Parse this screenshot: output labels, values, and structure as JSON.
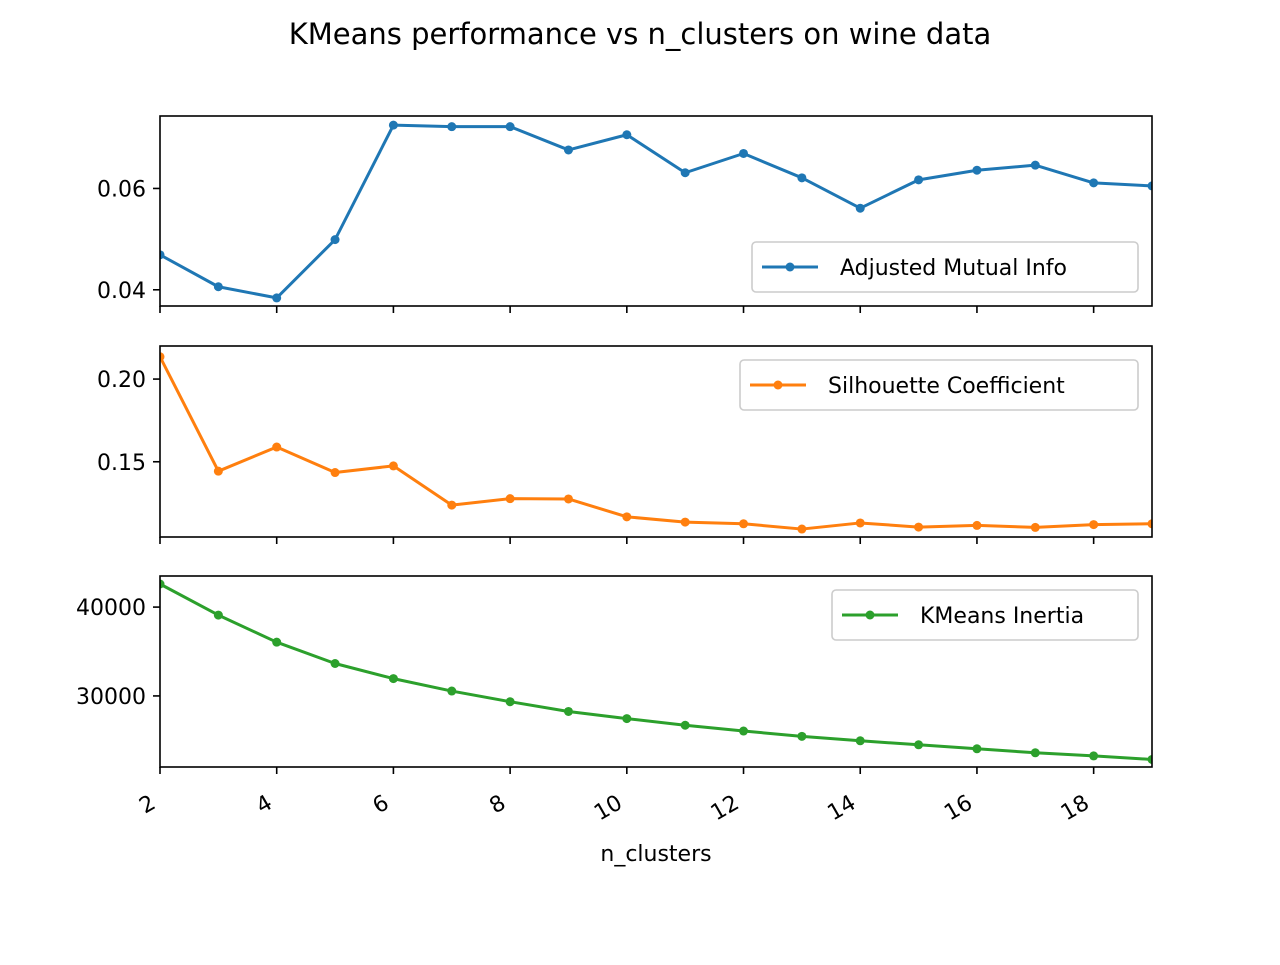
{
  "chart_data": {
    "type": "line",
    "title": "KMeans performance vs n_clusters on wine data",
    "xlabel": "n_clusters",
    "x": [
      2,
      3,
      4,
      5,
      6,
      7,
      8,
      9,
      10,
      11,
      12,
      13,
      14,
      15,
      16,
      17,
      18,
      19
    ],
    "xlim": [
      2,
      19
    ],
    "xticks": [
      2,
      4,
      6,
      8,
      10,
      12,
      14,
      16,
      18
    ],
    "xtick_labels": [
      "2",
      "4",
      "6",
      "8",
      "10",
      "12",
      "14",
      "16",
      "18"
    ],
    "grid": false,
    "panels": [
      {
        "legend_loc": "lower right",
        "ylim": [
          0.0368,
          0.0743
        ],
        "yticks": [
          0.04,
          0.06
        ],
        "ytick_labels": [
          "0.04",
          "0.06"
        ],
        "series": [
          {
            "name": "Adjusted Mutual Info",
            "color": "#1f77b4",
            "values": [
              0.0469,
              0.0406,
              0.0384,
              0.0499,
              0.0725,
              0.0722,
              0.0722,
              0.0676,
              0.0706,
              0.0631,
              0.0669,
              0.0621,
              0.0561,
              0.0617,
              0.0636,
              0.0646,
              0.0611,
              0.0605
            ]
          }
        ]
      },
      {
        "legend_loc": "upper right",
        "ylim": [
          0.1045,
          0.22
        ],
        "yticks": [
          0.15,
          0.2
        ],
        "ytick_labels": [
          "0.15",
          "0.20"
        ],
        "series": [
          {
            "name": "Silhouette Coefficient",
            "color": "#ff7f0e",
            "values": [
              0.2135,
              0.1443,
              0.1589,
              0.1435,
              0.1475,
              0.1238,
              0.1277,
              0.1275,
              0.1167,
              0.1135,
              0.1125,
              0.1093,
              0.113,
              0.1105,
              0.1115,
              0.1103,
              0.112,
              0.1125
            ]
          }
        ]
      },
      {
        "legend_loc": "upper right",
        "ylim": [
          22000,
          43500
        ],
        "yticks": [
          30000,
          40000
        ],
        "ytick_labels": [
          "30000",
          "40000"
        ],
        "series": [
          {
            "name": "KMeans Inertia",
            "color": "#2ca02c",
            "values": [
              42600,
              39100,
              36050,
              33650,
              31950,
              30550,
              29350,
              28250,
              27450,
              26700,
              26050,
              25450,
              24950,
              24500,
              24050,
              23600,
              23250,
              22850
            ]
          }
        ]
      }
    ]
  }
}
